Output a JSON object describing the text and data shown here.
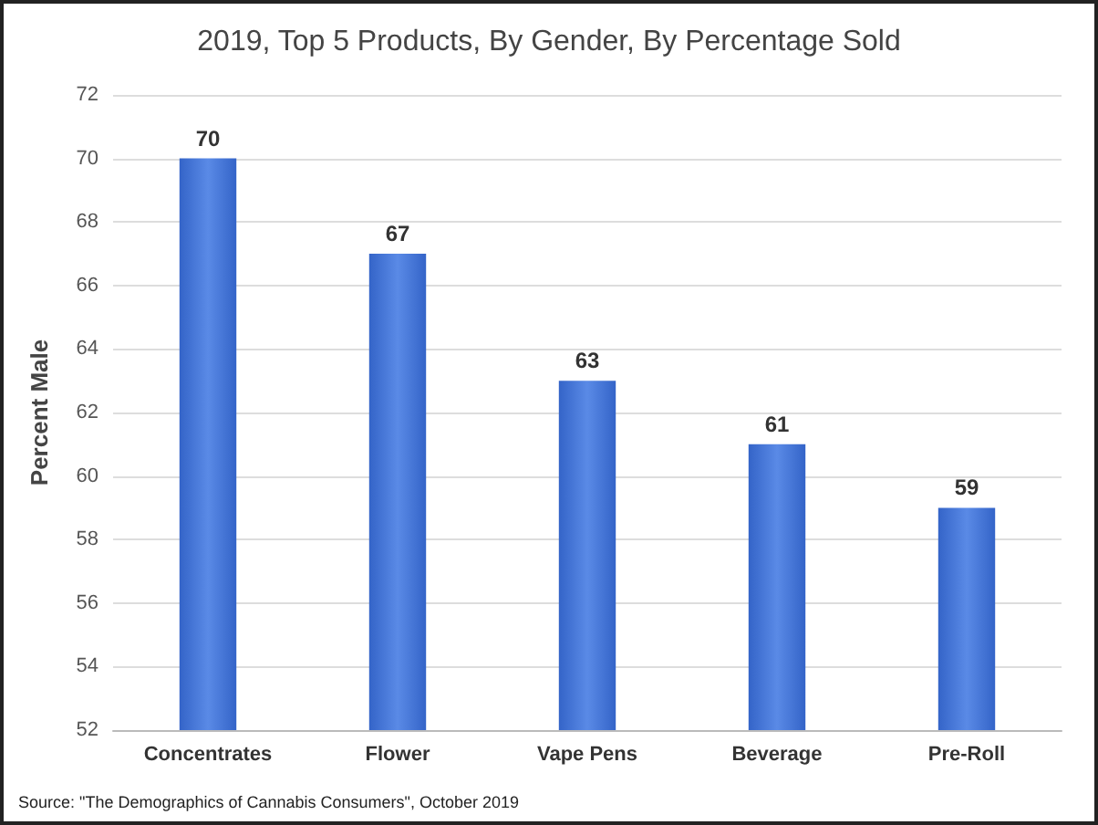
{
  "chart_data": {
    "type": "bar",
    "title": "2019, Top 5 Products, By Gender, By Percentage Sold",
    "ylabel": "Percent Male",
    "categories": [
      "Concentrates",
      "Flower",
      "Vape Pens",
      "Beverage",
      "Pre-Roll"
    ],
    "values": [
      70,
      67,
      63,
      61,
      59
    ],
    "color": "#3464c8",
    "ylim": [
      52,
      72
    ],
    "yticks": [
      52,
      54,
      56,
      58,
      60,
      62,
      64,
      66,
      68,
      70,
      72
    ],
    "grid": "y",
    "data_labels": true,
    "annotations": [
      "Source: \"The Demographics of Cannabis Consumers\", October 2019"
    ]
  }
}
